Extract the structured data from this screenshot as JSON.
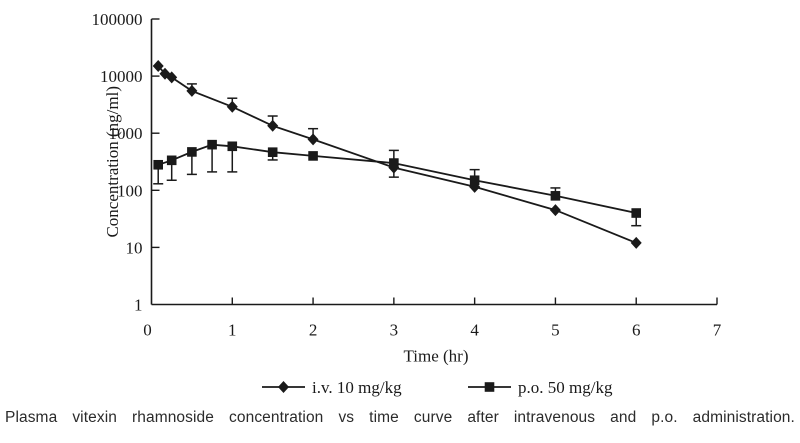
{
  "figure": {
    "caption": "Plasma vitexin rhamnoside concentration vs time curve after intravenous and p.o. administration."
  },
  "chart_data": {
    "type": "line",
    "title": "",
    "xlabel": "Time (hr)",
    "ylabel": "Concentration (ng/ml)",
    "x_ticks": [
      0,
      1,
      2,
      3,
      4,
      5,
      6,
      7
    ],
    "y_ticks": [
      1,
      10,
      100,
      1000,
      10000,
      100000
    ],
    "xlim": [
      0,
      7
    ],
    "ylim": [
      1,
      100000
    ],
    "y_scale": "log",
    "grid": false,
    "legend_position": "bottom",
    "line_color": "#1a1a1a",
    "background": "#ffffff",
    "series": [
      {
        "name": "i.v. 10 mg/kg",
        "marker": "diamond",
        "x": [
          0.083,
          0.167,
          0.25,
          0.5,
          1,
          1.5,
          2,
          3,
          4,
          5,
          6
        ],
        "y": [
          15000,
          11000,
          9500,
          5500,
          2900,
          1350,
          780,
          250,
          115,
          45,
          12
        ],
        "err_hi": [
          null,
          null,
          null,
          7300,
          4100,
          2000,
          1200,
          null,
          null,
          null,
          null
        ],
        "err_lo": [
          null,
          null,
          null,
          null,
          null,
          null,
          null,
          null,
          null,
          null,
          null
        ]
      },
      {
        "name": "p.o. 50 mg/kg",
        "marker": "square",
        "x": [
          0.083,
          0.25,
          0.5,
          0.75,
          1,
          1.5,
          2,
          3,
          4,
          5,
          6
        ],
        "y": [
          280,
          335,
          470,
          630,
          590,
          465,
          400,
          300,
          150,
          80,
          40
        ],
        "err_hi": [
          null,
          null,
          null,
          null,
          null,
          null,
          null,
          500,
          230,
          110,
          null
        ],
        "err_lo": [
          130,
          150,
          190,
          210,
          210,
          340,
          null,
          170,
          null,
          null,
          24
        ]
      }
    ]
  }
}
